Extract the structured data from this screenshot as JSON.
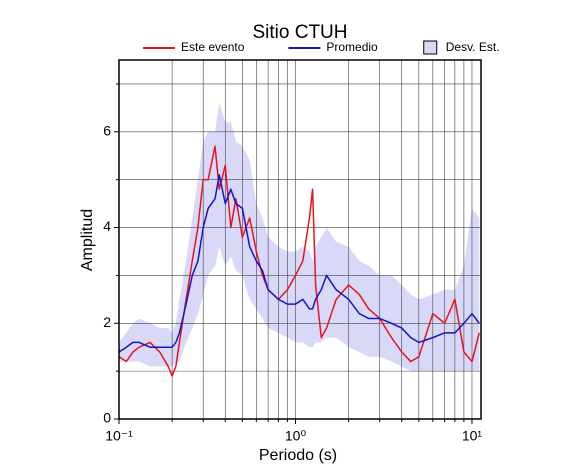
{
  "chart_data": {
    "type": "line",
    "title": "Sitio CTUH",
    "x_label": "Periodo (s)",
    "y_label": "Amplitud",
    "legend": "top",
    "grid": true,
    "log_x": true,
    "xlim": [
      0.1,
      11.25
    ],
    "xticks": [
      {
        "value": 0.1,
        "label": "10⁻¹"
      },
      {
        "value": 1,
        "label": "10⁰"
      },
      {
        "value": 10,
        "label": "10¹"
      }
    ],
    "xminorticks": [
      0.2,
      0.3,
      0.4,
      0.5,
      0.6,
      0.7,
      0.8,
      0.9,
      2,
      3,
      4,
      5,
      6,
      7,
      8,
      9
    ],
    "ylim": [
      0,
      7.5
    ],
    "yticks": [
      0,
      2,
      4,
      6
    ],
    "yminorticks": [
      1,
      3,
      5,
      7
    ],
    "x": [
      0.1,
      0.11,
      0.12,
      0.13,
      0.15,
      0.17,
      0.19,
      0.2,
      0.21,
      0.22,
      0.24,
      0.26,
      0.28,
      0.3,
      0.32,
      0.35,
      0.37,
      0.4,
      0.43,
      0.46,
      0.5,
      0.55,
      0.6,
      0.65,
      0.7,
      0.8,
      0.9,
      1.0,
      1.1,
      1.2,
      1.25,
      1.3,
      1.4,
      1.5,
      1.7,
      2.0,
      2.3,
      2.6,
      3.0,
      3.5,
      4.0,
      4.5,
      5.0,
      6.0,
      7.0,
      8.0,
      9.0,
      10.0,
      11.0
    ],
    "band": {
      "name": "Desv. Est.",
      "color": "#d8d8f8",
      "upper": [
        1.6,
        1.8,
        2.0,
        2.1,
        2.0,
        1.9,
        1.9,
        1.8,
        2.0,
        2.5,
        3.3,
        4.2,
        5.0,
        5.8,
        6.0,
        6.0,
        6.6,
        6.2,
        6.2,
        5.8,
        5.7,
        5.4,
        4.5,
        4.2,
        3.8,
        3.6,
        3.5,
        3.5,
        3.6,
        3.5,
        3.3,
        3.6,
        3.8,
        4.0,
        3.7,
        3.6,
        3.3,
        3.2,
        3.0,
        3.0,
        2.8,
        2.6,
        2.5,
        2.6,
        2.7,
        2.7,
        3.2,
        4.4,
        4.2
      ],
      "lower": [
        1.2,
        1.2,
        1.2,
        1.2,
        1.1,
        1.1,
        1.1,
        1.1,
        1.2,
        1.2,
        1.6,
        1.9,
        2.2,
        2.6,
        3.0,
        3.2,
        3.6,
        3.2,
        3.4,
        3.1,
        3.0,
        2.5,
        2.3,
        2.1,
        1.9,
        1.8,
        1.7,
        1.6,
        1.6,
        1.5,
        1.5,
        1.6,
        1.6,
        1.7,
        1.7,
        1.5,
        1.4,
        1.3,
        1.3,
        1.2,
        1.1,
        1.0,
        1.0,
        1.0,
        1.0,
        1.0,
        1.0,
        1.0,
        1.0
      ]
    },
    "series": [
      {
        "name": "Este evento",
        "color": "#e8141c",
        "values": [
          1.3,
          1.2,
          1.4,
          1.5,
          1.6,
          1.4,
          1.1,
          0.9,
          1.1,
          1.6,
          2.5,
          3.3,
          4.0,
          5.0,
          5.0,
          5.7,
          4.8,
          5.3,
          4.0,
          4.6,
          3.8,
          4.2,
          3.5,
          3.0,
          2.7,
          2.5,
          2.7,
          3.0,
          3.3,
          4.2,
          4.8,
          2.8,
          1.7,
          1.9,
          2.5,
          2.8,
          2.6,
          2.3,
          2.1,
          1.7,
          1.4,
          1.2,
          1.3,
          2.2,
          2.0,
          2.5,
          1.4,
          1.2,
          1.8
        ]
      },
      {
        "name": "Promedio",
        "color": "#1414d0",
        "values": [
          1.4,
          1.5,
          1.6,
          1.6,
          1.5,
          1.5,
          1.5,
          1.5,
          1.6,
          1.8,
          2.4,
          3.0,
          3.3,
          4.0,
          4.4,
          4.6,
          5.1,
          4.5,
          4.8,
          4.5,
          4.4,
          3.6,
          3.3,
          3.1,
          2.7,
          2.5,
          2.4,
          2.4,
          2.5,
          2.3,
          2.3,
          2.5,
          2.7,
          3.0,
          2.7,
          2.5,
          2.2,
          2.1,
          2.1,
          2.0,
          1.9,
          1.7,
          1.6,
          1.7,
          1.8,
          1.8,
          2.0,
          2.2,
          2.0
        ]
      }
    ]
  }
}
